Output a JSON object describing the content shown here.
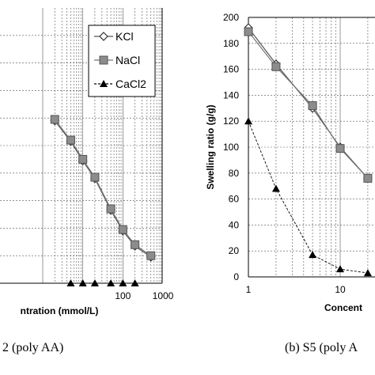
{
  "chart_data": [
    {
      "type": "line",
      "xscale": "log",
      "xlabel": "ntration (mmol/L)",
      "ylabel": "",
      "caption": "2 (poly AA)",
      "xticks": [
        {
          "value": 100,
          "label": "100"
        },
        {
          "value": 1000,
          "label": "1000"
        }
      ],
      "legend_position": "top-right",
      "series": [
        {
          "name": "KCl",
          "marker": "diamond-open",
          "line": "solid",
          "color": "#555555",
          "x": [
            2,
            5,
            10,
            20,
            50,
            100,
            200,
            500
          ],
          "y": [
            118,
            103,
            89,
            76,
            53,
            38,
            27,
            19
          ]
        },
        {
          "name": "NaCl",
          "marker": "square",
          "line": "solid",
          "color": "#777777",
          "x": [
            2,
            5,
            10,
            20,
            50,
            100,
            200,
            500
          ],
          "y": [
            119,
            104,
            90,
            77,
            54,
            39,
            28,
            20
          ]
        },
        {
          "name": "CaCl2",
          "marker": "triangle",
          "line": "dashed",
          "color": "#000000",
          "x": [
            5,
            10,
            20,
            50,
            100,
            200
          ],
          "y": [
            0,
            0,
            0,
            0,
            0,
            0
          ]
        }
      ]
    },
    {
      "type": "line",
      "xscale": "log",
      "xlabel": "Concent",
      "ylabel": "Swelling ratio (g/g)",
      "caption": "(b) S5 (poly A",
      "ylim": [
        0,
        200
      ],
      "yticks": [
        0,
        20,
        40,
        60,
        80,
        100,
        120,
        140,
        160,
        180,
        200
      ],
      "xticks": [
        {
          "value": 1,
          "label": "1"
        },
        {
          "value": 10,
          "label": "10"
        }
      ],
      "series": [
        {
          "name": "KCl",
          "marker": "diamond-open",
          "line": "solid",
          "color": "#555555",
          "x": [
            1,
            2,
            5,
            10,
            20
          ],
          "y": [
            192,
            164,
            130,
            100,
            76
          ]
        },
        {
          "name": "NaCl",
          "marker": "square",
          "line": "solid",
          "color": "#777777",
          "x": [
            1,
            2,
            5,
            10,
            20
          ],
          "y": [
            189,
            162,
            132,
            99,
            76
          ]
        },
        {
          "name": "CaCl2",
          "marker": "triangle",
          "line": "dashed",
          "color": "#000000",
          "x": [
            1,
            2,
            5,
            10,
            20
          ],
          "y": [
            120,
            68,
            17,
            6,
            3
          ]
        }
      ]
    }
  ]
}
